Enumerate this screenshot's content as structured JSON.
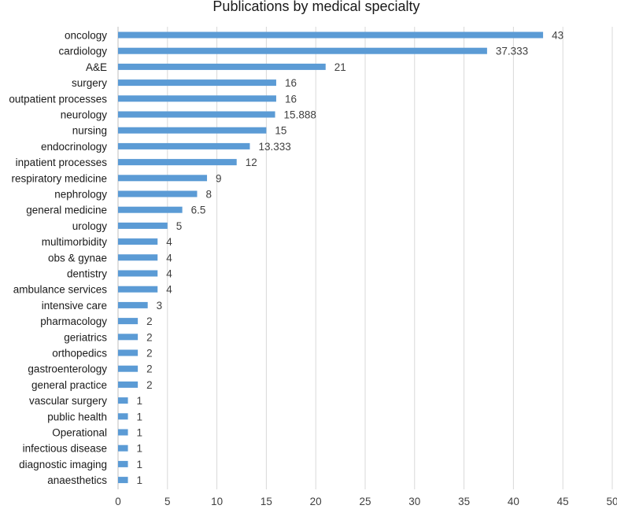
{
  "chart_data": {
    "type": "bar",
    "orientation": "horizontal",
    "title": "Publications by medical specialty",
    "xlabel": "",
    "ylabel": "",
    "xlim": [
      0,
      50
    ],
    "x_ticks": [
      0,
      5,
      10,
      15,
      20,
      25,
      30,
      35,
      40,
      45,
      50
    ],
    "grid": "vertical",
    "legend": "none",
    "bar_color": "#5b9bd5",
    "categories": [
      "oncology",
      "cardiology",
      "A&E",
      "surgery",
      "outpatient processes",
      "neurology",
      "nursing",
      "endocrinology",
      "inpatient processes",
      "respiratory medicine",
      "nephrology",
      "general medicine",
      "urology",
      "multimorbidity",
      "obs & gynae",
      "dentistry",
      "ambulance services",
      "intensive care",
      "pharmacology",
      "geriatrics",
      "orthopedics",
      "gastroenterology",
      "general practice",
      "vascular surgery",
      "public health",
      "Operational",
      "infectious disease",
      "diagnostic imaging",
      "anaesthetics"
    ],
    "values": [
      43,
      37.333,
      21,
      16,
      16,
      15.888,
      15,
      13.333,
      12,
      9,
      8,
      6.5,
      5,
      4,
      4,
      4,
      4,
      3,
      2,
      2,
      2,
      2,
      2,
      1,
      1,
      1,
      1,
      1,
      1
    ],
    "value_labels": [
      "43",
      "37.333",
      "21",
      "16",
      "16",
      "15.888",
      "15",
      "13.333",
      "12",
      "9",
      "8",
      "6.5",
      "5",
      "4",
      "4",
      "4",
      "4",
      "3",
      "2",
      "2",
      "2",
      "2",
      "2",
      "1",
      "1",
      "1",
      "1",
      "1",
      "1"
    ]
  }
}
